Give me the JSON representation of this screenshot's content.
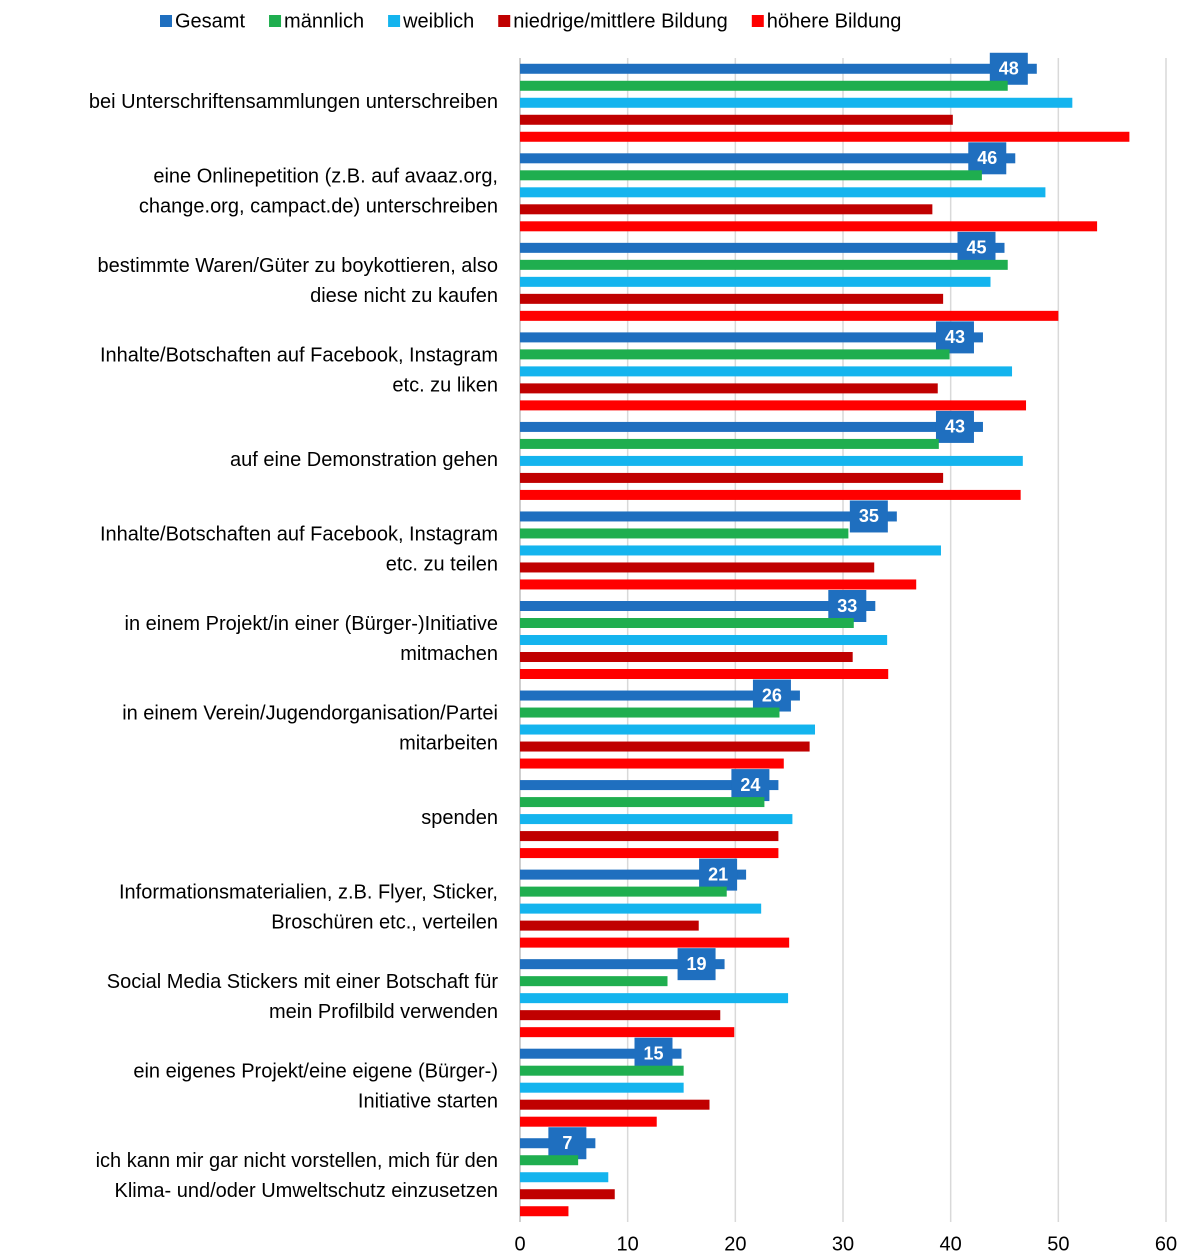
{
  "chart_data": {
    "type": "bar",
    "orientation": "horizontal",
    "categories": [
      "bei Unterschriftensammlungen unterschreiben",
      "eine Onlinepetition (z.B. auf avaaz.org,\nchange.org, campact.de) unterschreiben",
      "bestimmte Waren/Güter zu boykottieren, also\ndiese nicht zu kaufen",
      "Inhalte/Botschaften auf Facebook, Instagram\netc. zu liken",
      "auf eine Demonstration gehen",
      "Inhalte/Botschaften auf Facebook, Instagram\netc. zu teilen",
      "in einem Projekt/in einer (Bürger-)Initiative\nmitmachen",
      "in einem Verein/Jugendorganisation/Partei\nmitarbeiten",
      "spenden",
      "Informationsmaterialien, z.B. Flyer, Sticker,\nBroschüren etc., verteilen",
      "Social Media Stickers mit einer Botschaft für\nmein Profilbild verwenden",
      "ein eigenes Projekt/eine eigene (Bürger-)\nInitiative starten",
      "ich kann mir gar nicht vorstellen, mich für den\nKlima- und/oder Umweltschutz einzusetzen"
    ],
    "series": [
      {
        "name": "Gesamt",
        "color": "#1f6fbf",
        "values": [
          48,
          46,
          45,
          43,
          43,
          35,
          33,
          26,
          24,
          21,
          19,
          15,
          7
        ],
        "data_labels": true
      },
      {
        "name": "männlich",
        "color": "#1fae4f",
        "values": [
          45.3,
          42.9,
          45.3,
          39.9,
          38.9,
          30.5,
          31.0,
          24.1,
          22.7,
          19.2,
          13.7,
          15.2,
          5.4
        ]
      },
      {
        "name": "weiblich",
        "color": "#14b4ee",
        "values": [
          51.3,
          48.8,
          43.7,
          45.7,
          46.7,
          39.1,
          34.1,
          27.4,
          25.3,
          22.4,
          24.9,
          15.2,
          8.2
        ]
      },
      {
        "name": "niedrige/mittlere Bildung",
        "color": "#c00000",
        "values": [
          40.2,
          38.3,
          39.3,
          38.8,
          39.3,
          32.9,
          30.9,
          26.9,
          24.0,
          16.6,
          18.6,
          17.6,
          8.8
        ]
      },
      {
        "name": "höhere Bildung",
        "color": "#ff0000",
        "values": [
          56.6,
          53.6,
          50.0,
          47.0,
          46.5,
          36.8,
          34.2,
          24.5,
          24.0,
          25.0,
          19.9,
          12.7,
          4.5
        ]
      }
    ],
    "xlim": [
      0,
      60
    ],
    "xticks": [
      0,
      10,
      20,
      30,
      40,
      50,
      60
    ],
    "grid": true,
    "legend": "top"
  }
}
